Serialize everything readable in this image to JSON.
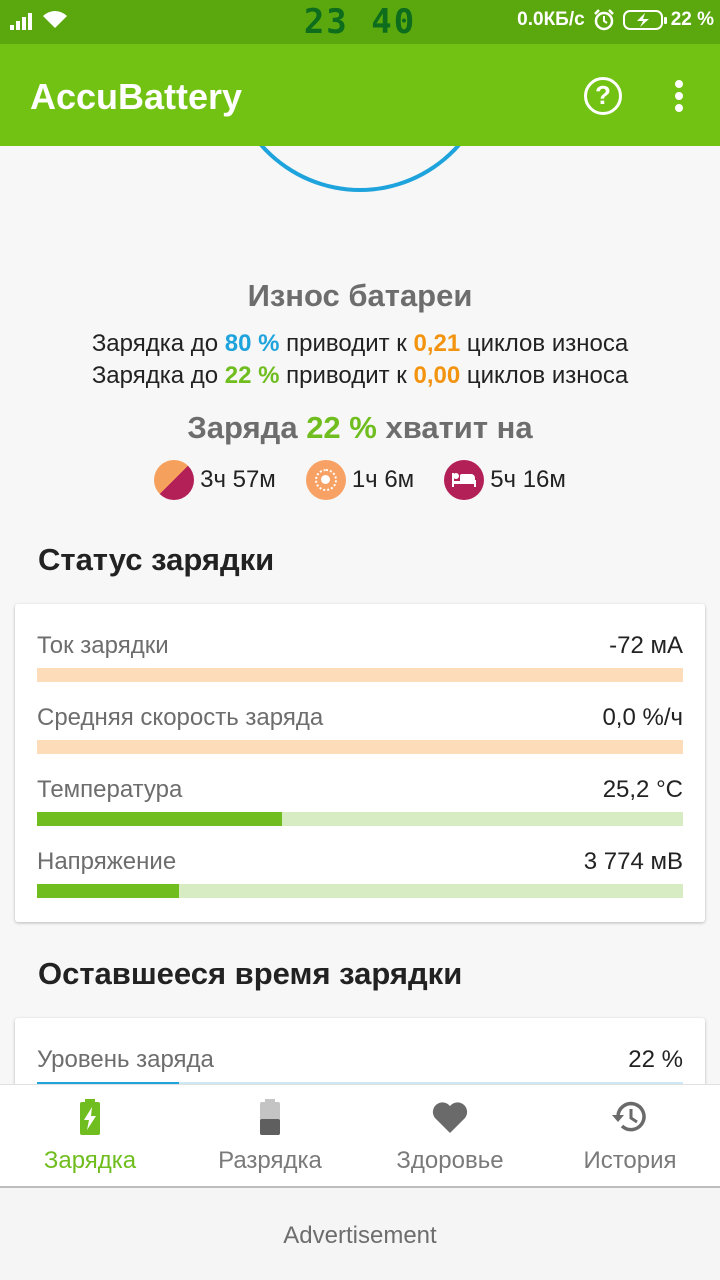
{
  "status_bar": {
    "time": "23 40",
    "network_speed": "0.0КБ/с",
    "battery_percent": "22 %",
    "icons": [
      "signal-icon",
      "wifi-icon",
      "alarm-icon",
      "battery-charging-icon"
    ]
  },
  "app_bar": {
    "title": "AccuBattery",
    "help_label": "?"
  },
  "wear": {
    "title": "Износ батареи",
    "line1": {
      "prefix": "Зарядка до ",
      "percent": "80 %",
      "middle": " приводит к ",
      "cycles": "0,21",
      "suffix": " циклов износа"
    },
    "line2": {
      "prefix": "Зарядка до ",
      "percent": "22 %",
      "middle": " приводит к ",
      "cycles": "0,00",
      "suffix": " циклов износа"
    }
  },
  "enough": {
    "prefix": "Заряда ",
    "percent": "22 %",
    "suffix": " хватит на",
    "estimates": [
      {
        "icon": "mixed-usage-icon",
        "value": "3ч 57м"
      },
      {
        "icon": "screen-on-sun-icon",
        "value": "1ч 6м"
      },
      {
        "icon": "sleep-bed-icon",
        "value": "5ч 16м"
      }
    ]
  },
  "charging_status": {
    "title": "Статус зарядки",
    "rows": [
      {
        "label": "Ток зарядки",
        "value": "-72 мА",
        "fill": 0.0
      },
      {
        "label": "Средняя скорость заряда",
        "value": "0,0 %/ч",
        "fill": 0.0
      },
      {
        "label": "Температура",
        "value": "25,2 °C",
        "fill": 0.38
      },
      {
        "label": "Напряжение",
        "value": "3 774 мВ",
        "fill": 0.22
      }
    ]
  },
  "remaining": {
    "title": "Оставшееся время зарядки",
    "rows": [
      {
        "label": "Уровень заряда",
        "value": "22 %",
        "fill": 0.22
      }
    ]
  },
  "bottom_nav": {
    "items": [
      {
        "label": "Зарядка",
        "icon": "battery-charging-icon",
        "active": true
      },
      {
        "label": "Разрядка",
        "icon": "battery-discharge-icon",
        "active": false
      },
      {
        "label": "Здоровье",
        "icon": "heart-icon",
        "active": false
      },
      {
        "label": "История",
        "icon": "history-icon",
        "active": false
      }
    ]
  },
  "advertisement": "Advertisement",
  "colors": {
    "status_bar": "#5aa80e",
    "app_bar": "#72c214",
    "green": "#6fbd1e",
    "blue": "#1ea3dc",
    "orange": "#f29410",
    "peach_track": "#fcdcb9",
    "green_track": "#d8ecc4"
  }
}
